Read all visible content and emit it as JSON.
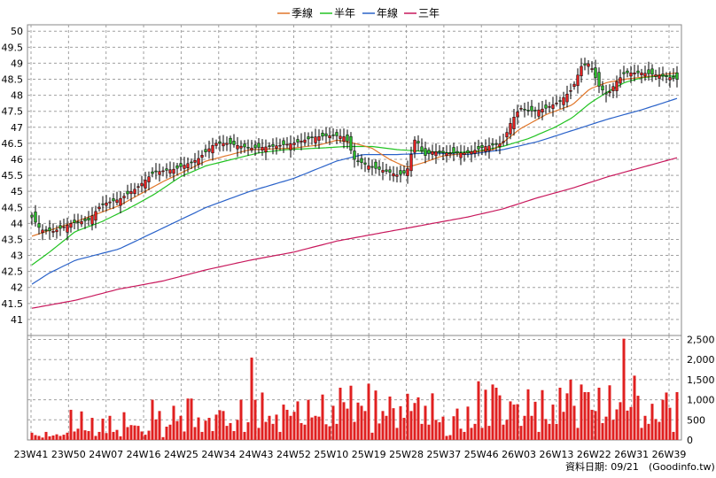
{
  "legend": [
    {
      "label": "季線",
      "color": "#e0762a"
    },
    {
      "label": "半年",
      "color": "#22c322"
    },
    {
      "label": "年線",
      "color": "#2a62c9"
    },
    {
      "label": "三年",
      "color": "#c8185c"
    }
  ],
  "footer": {
    "date_label": "資料日期: 09/21",
    "source_label": "(Goodinfo.tw)"
  },
  "chart_data": {
    "type": "candlestick",
    "price_axis": {
      "min": 40.5,
      "max": 50.2,
      "ticks": [
        41,
        41.5,
        42,
        42.5,
        43,
        43.5,
        44,
        44.5,
        45,
        45.5,
        46,
        46.5,
        47,
        47.5,
        48,
        48.5,
        49,
        49.5,
        50
      ]
    },
    "volume_axis": {
      "min": 0,
      "max": 2600,
      "ticks": [
        0,
        500,
        1000,
        1500,
        2000,
        2500
      ],
      "tick_labels": [
        "0",
        "500",
        "1,000",
        "1,500",
        "2,000",
        "2,500"
      ]
    },
    "x_tick_labels": [
      "23W41",
      "23W50",
      "24W07",
      "24W16",
      "24W25",
      "24W34",
      "24W43",
      "24W52",
      "25W10",
      "25W19",
      "25W28",
      "25W37",
      "25W46",
      "26W03",
      "26W13",
      "26W22",
      "26W31",
      "26W39"
    ],
    "grid": true,
    "close_anchors": [
      [
        0,
        44.2
      ],
      [
        2,
        43.8
      ],
      [
        5,
        43.75
      ],
      [
        9,
        44.0
      ],
      [
        13,
        44.1
      ],
      [
        16,
        44.6
      ],
      [
        20,
        44.75
      ],
      [
        24,
        45.1
      ],
      [
        28,
        45.6
      ],
      [
        33,
        45.7
      ],
      [
        38,
        46.0
      ],
      [
        42,
        46.5
      ],
      [
        45,
        46.5
      ],
      [
        50,
        46.35
      ],
      [
        55,
        46.4
      ],
      [
        60,
        46.5
      ],
      [
        65,
        46.7
      ],
      [
        69,
        46.75
      ],
      [
        72,
        46.7
      ],
      [
        74,
        46.0
      ],
      [
        78,
        45.75
      ],
      [
        82,
        45.6
      ],
      [
        84,
        45.5
      ],
      [
        86,
        45.6
      ],
      [
        88,
        46.7
      ],
      [
        90,
        46.1
      ],
      [
        92,
        46.25
      ],
      [
        95,
        46.2
      ],
      [
        100,
        46.2
      ],
      [
        104,
        46.4
      ],
      [
        108,
        46.5
      ],
      [
        110,
        47.2
      ],
      [
        112,
        47.6
      ],
      [
        115,
        47.5
      ],
      [
        118,
        47.6
      ],
      [
        121,
        47.8
      ],
      [
        124,
        48.2
      ],
      [
        126,
        48.9
      ],
      [
        128,
        49.0
      ],
      [
        130,
        48.3
      ],
      [
        132,
        48.0
      ],
      [
        134,
        48.4
      ],
      [
        136,
        48.7
      ],
      [
        140,
        48.7
      ],
      [
        145,
        48.6
      ],
      [
        148,
        48.5
      ]
    ],
    "quarter_ma_anchors": [
      [
        0,
        43.6
      ],
      [
        10,
        44.05
      ],
      [
        20,
        44.55
      ],
      [
        30,
        45.3
      ],
      [
        40,
        45.95
      ],
      [
        50,
        46.3
      ],
      [
        60,
        46.35
      ],
      [
        66,
        46.45
      ],
      [
        70,
        46.6
      ],
      [
        74,
        46.5
      ],
      [
        78,
        46.35
      ],
      [
        82,
        46.0
      ],
      [
        86,
        45.75
      ],
      [
        90,
        45.9
      ],
      [
        94,
        46.1
      ],
      [
        100,
        46.2
      ],
      [
        106,
        46.3
      ],
      [
        112,
        46.95
      ],
      [
        118,
        47.4
      ],
      [
        124,
        47.7
      ],
      [
        128,
        48.2
      ],
      [
        132,
        48.4
      ],
      [
        136,
        48.5
      ],
      [
        142,
        48.6
      ],
      [
        148,
        48.7
      ]
    ],
    "half_ma_anchors": [
      [
        0,
        42.7
      ],
      [
        4,
        43.1
      ],
      [
        10,
        43.75
      ],
      [
        16,
        44.05
      ],
      [
        22,
        44.45
      ],
      [
        28,
        44.9
      ],
      [
        34,
        45.45
      ],
      [
        40,
        45.8
      ],
      [
        46,
        46.0
      ],
      [
        52,
        46.2
      ],
      [
        58,
        46.3
      ],
      [
        66,
        46.35
      ],
      [
        72,
        46.4
      ],
      [
        78,
        46.4
      ],
      [
        84,
        46.3
      ],
      [
        90,
        46.25
      ],
      [
        96,
        46.2
      ],
      [
        102,
        46.25
      ],
      [
        108,
        46.4
      ],
      [
        114,
        46.65
      ],
      [
        120,
        47.0
      ],
      [
        124,
        47.3
      ],
      [
        128,
        47.75
      ],
      [
        132,
        48.1
      ],
      [
        136,
        48.4
      ],
      [
        140,
        48.55
      ],
      [
        144,
        48.6
      ],
      [
        148,
        48.6
      ]
    ],
    "year_ma_anchors": [
      [
        0,
        42.1
      ],
      [
        4,
        42.45
      ],
      [
        10,
        42.85
      ],
      [
        20,
        43.2
      ],
      [
        30,
        43.85
      ],
      [
        40,
        44.5
      ],
      [
        50,
        45.0
      ],
      [
        60,
        45.4
      ],
      [
        70,
        45.95
      ],
      [
        76,
        46.15
      ],
      [
        84,
        46.15
      ],
      [
        92,
        46.2
      ],
      [
        100,
        46.15
      ],
      [
        108,
        46.3
      ],
      [
        116,
        46.55
      ],
      [
        124,
        46.9
      ],
      [
        132,
        47.25
      ],
      [
        140,
        47.55
      ],
      [
        148,
        47.9
      ]
    ],
    "three_year_ma_anchors": [
      [
        0,
        41.35
      ],
      [
        10,
        41.6
      ],
      [
        20,
        41.95
      ],
      [
        30,
        42.2
      ],
      [
        40,
        42.55
      ],
      [
        50,
        42.85
      ],
      [
        60,
        43.1
      ],
      [
        70,
        43.45
      ],
      [
        80,
        43.7
      ],
      [
        90,
        43.95
      ],
      [
        100,
        44.2
      ],
      [
        108,
        44.45
      ],
      [
        116,
        44.8
      ],
      [
        124,
        45.1
      ],
      [
        132,
        45.45
      ],
      [
        140,
        45.75
      ],
      [
        148,
        46.05
      ]
    ],
    "volume": [
      180,
      120,
      100,
      60,
      200,
      90,
      110,
      140,
      100,
      130,
      180,
      750,
      210,
      280,
      710,
      240,
      220,
      550,
      100,
      200,
      530,
      170,
      600,
      200,
      250,
      90,
      690,
      320,
      370,
      360,
      350,
      210,
      130,
      230,
      1000,
      510,
      720,
      70,
      330,
      380,
      850,
      470,
      600,
      210,
      1030,
      1030,
      320,
      560,
      200,
      480,
      550,
      220,
      630,
      740,
      720,
      350,
      420,
      220,
      500,
      1000,
      200,
      440,
      2050,
      1000,
      300,
      1180,
      450,
      600,
      400,
      630,
      200,
      880,
      750,
      600,
      700,
      960,
      420,
      380,
      1000,
      560,
      600,
      580,
      1130,
      390,
      340,
      850,
      400,
      1300,
      940,
      780,
      1350,
      450,
      930,
      850,
      720,
      1400,
      180,
      1230,
      410,
      720,
      600,
      1080,
      790,
      300,
      840,
      550,
      1150,
      720,
      920,
      1060,
      400,
      850,
      380,
      1160,
      500,
      440,
      580,
      100,
      120,
      590,
      780,
      280,
      200,
      830,
      300,
      400,
      1460,
      300,
      1250,
      350,
      1380,
      1300,
      1110,
      380,
      500,
      960,
      880,
      890,
      350,
      600,
      1260,
      600,
      950,
      200,
      1240,
      520,
      400,
      880,
      400,
      1300,
      700,
      1160,
      1500,
      850,
      300,
      1380,
      1190,
      1190,
      750,
      720,
      1300,
      420,
      580,
      1360,
      500,
      760,
      940,
      2520,
      730,
      820,
      1600,
      1100,
      300,
      600,
      400,
      900,
      520,
      450,
      1000,
      1180,
      800,
      200,
      1190
    ]
  }
}
